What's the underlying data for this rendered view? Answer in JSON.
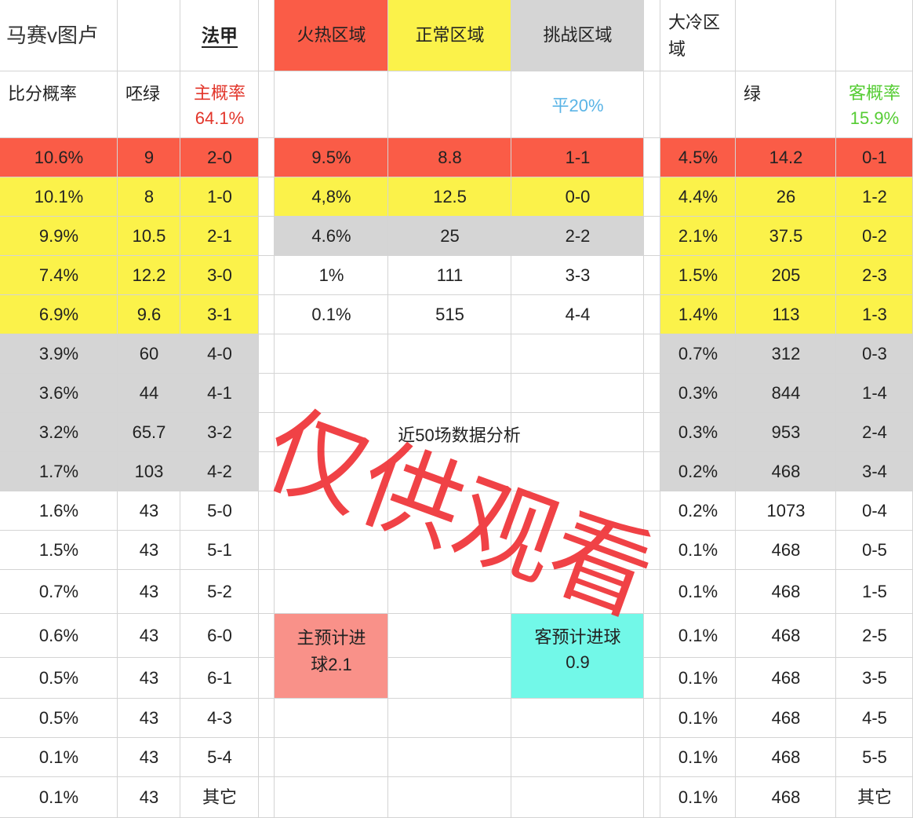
{
  "header": {
    "title": "马赛v图卢",
    "league": "法甲",
    "zones": [
      "火热区域",
      "正常区域",
      "挑战区域",
      "大冷区域"
    ]
  },
  "subheader": {
    "left_label": "比分概率",
    "left_odds": "呸绿",
    "home_prob_label": "主概率",
    "home_prob": "64.1%",
    "draw_prob": "平20%",
    "right_odds": "绿",
    "away_prob_label": "客概率",
    "away_prob": "15.9%"
  },
  "home_rows": [
    [
      "10.6%",
      "9",
      "2-0"
    ],
    [
      "10.1%",
      "8",
      "1-0"
    ],
    [
      "9.9%",
      "10.5",
      "2-1"
    ],
    [
      "7.4%",
      "12.2",
      "3-0"
    ],
    [
      "6.9%",
      "9.6",
      "3-1"
    ],
    [
      "3.9%",
      "60",
      "4-0"
    ],
    [
      "3.6%",
      "44",
      "4-1"
    ],
    [
      "3.2%",
      "65.7",
      "3-2"
    ],
    [
      "1.7%",
      "103",
      "4-2"
    ],
    [
      "1.6%",
      "43",
      "5-0"
    ],
    [
      "1.5%",
      "43",
      "5-1"
    ],
    [
      "0.7%",
      "43",
      "5-2"
    ],
    [
      "0.6%",
      "43",
      "6-0"
    ],
    [
      "0.5%",
      "43",
      "6-1"
    ],
    [
      "0.5%",
      "43",
      "4-3"
    ],
    [
      "0.1%",
      "43",
      "5-4"
    ],
    [
      "0.1%",
      "43",
      "其它"
    ]
  ],
  "mid_rows": [
    [
      "9.5%",
      "8.8",
      "1-1"
    ],
    [
      "4,8%",
      "12.5",
      "0-0"
    ],
    [
      "4.6%",
      "25",
      "2-2"
    ],
    [
      "1%",
      "111",
      "3-3"
    ],
    [
      "0.1%",
      "515",
      "4-4"
    ]
  ],
  "away_rows": [
    [
      "4.5%",
      "14.2",
      "0-1"
    ],
    [
      "4.4%",
      "26",
      "1-2"
    ],
    [
      "2.1%",
      "37.5",
      "0-2"
    ],
    [
      "1.5%",
      "205",
      "2-3"
    ],
    [
      "1.4%",
      "113",
      "1-3"
    ],
    [
      "0.7%",
      "312",
      "0-3"
    ],
    [
      "0.3%",
      "844",
      "1-4"
    ],
    [
      "0.3%",
      "953",
      "2-4"
    ],
    [
      "0.2%",
      "468",
      "3-4"
    ],
    [
      "0.2%",
      "1073",
      "0-4"
    ],
    [
      "0.1%",
      "468",
      "0-5"
    ],
    [
      "0.1%",
      "468",
      "1-5"
    ],
    [
      "0.1%",
      "468",
      "2-5"
    ],
    [
      "0.1%",
      "468",
      "3-5"
    ],
    [
      "0.1%",
      "468",
      "4-5"
    ],
    [
      "0.1%",
      "468",
      "5-5"
    ],
    [
      "0.1%",
      "468",
      "其它"
    ]
  ],
  "note": "近50场数据分析",
  "home_goals": "主预计进球2.1",
  "away_goals": "客预计进球0.9",
  "watermark": "仅供观看"
}
